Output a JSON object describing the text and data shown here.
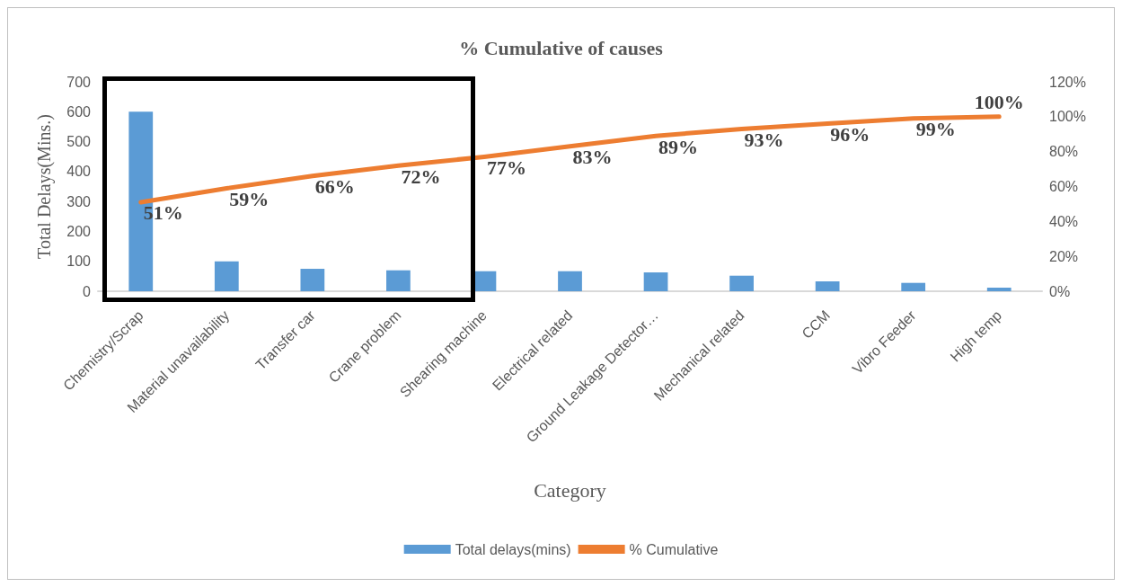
{
  "chart_data": {
    "type": "bar",
    "title": "% Cumulative of causes",
    "xlabel": "Category",
    "ylabel": "Total Delays(Mins.)",
    "categories": [
      "Chemistry/Scrap",
      "Material unavailability",
      "Transfer car",
      "Crane problem",
      "Shearing machine",
      "Electrical related",
      "Ground Leakage Detector…",
      "Mechanical related",
      "CCM",
      "Vibro Feeder",
      "High temp"
    ],
    "series": [
      {
        "name": "Total delays(mins)",
        "color": "#5b9bd5",
        "values": [
          600,
          100,
          75,
          70,
          67,
          67,
          63,
          52,
          33,
          28,
          12
        ]
      },
      {
        "name": "% Cumulative",
        "type": "line",
        "axis": "y2",
        "color": "#ed7d31",
        "values": [
          51,
          59,
          66,
          72,
          77,
          83,
          89,
          93,
          96,
          99,
          100
        ],
        "value_labels": [
          "51%",
          "59%",
          "66%",
          "72%",
          "77%",
          "83%",
          "89%",
          "93%",
          "96%",
          "99%",
          "100%"
        ]
      }
    ],
    "ylim": [
      0,
      700
    ],
    "yticks": [
      0,
      100,
      200,
      300,
      400,
      500,
      600,
      700
    ],
    "y2lim": [
      0,
      120
    ],
    "y2ticks": [
      {
        "value": 0,
        "label": "0%"
      },
      {
        "value": 20,
        "label": "20%"
      },
      {
        "value": 40,
        "label": "40%"
      },
      {
        "value": 60,
        "label": "60%"
      },
      {
        "value": 80,
        "label": "80%"
      },
      {
        "value": 100,
        "label": "100%"
      },
      {
        "value": 120,
        "label": "120%"
      }
    ],
    "grid": false,
    "legend": "bottom",
    "marker": "none"
  }
}
